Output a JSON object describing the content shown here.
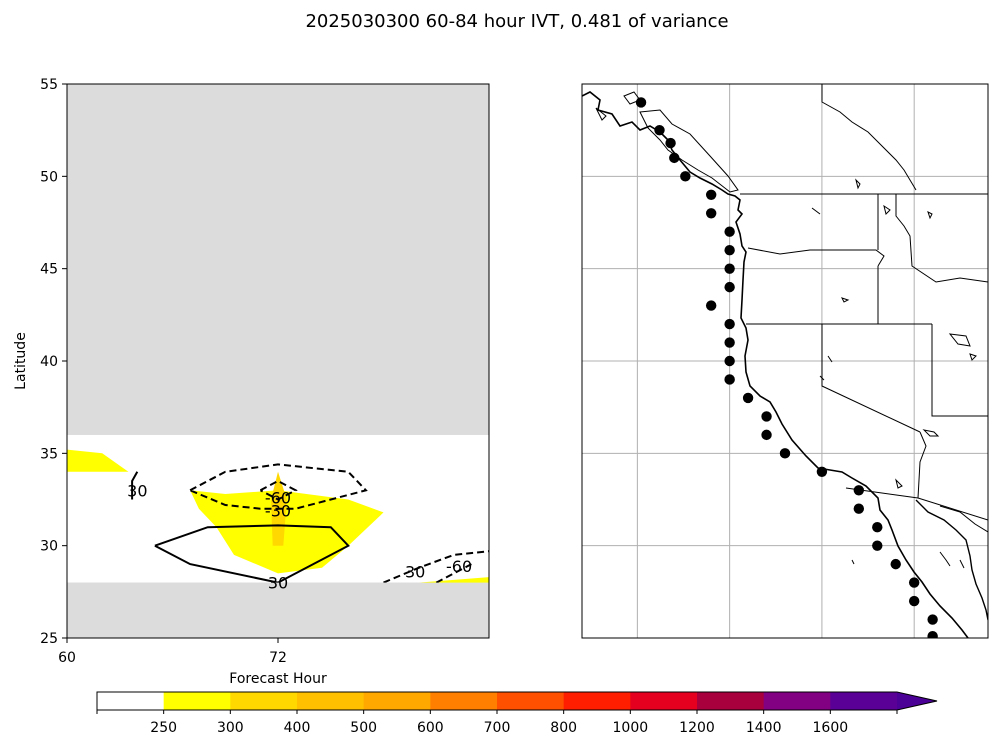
{
  "figure": {
    "title": "2025030300 60-84 hour IVT, 0.481 of variance"
  },
  "chart_data": [
    {
      "type": "heatmap",
      "panel": "left",
      "xlabel": "Forecast Hour",
      "ylabel": "Latitude",
      "xlim": [
        60,
        84
      ],
      "ylim": [
        25,
        55
      ],
      "x_ticks": [
        60,
        72
      ],
      "y_ticks": [
        25,
        30,
        35,
        40,
        45,
        50,
        55
      ],
      "masked_fill_color": "#dcdcdc",
      "valid_latitude_range": [
        28,
        36
      ],
      "filled_regions": [
        {
          "level": "250-300",
          "color": "#ffff00",
          "polygon": [
            [
              60,
              35.2
            ],
            [
              62,
              35
            ],
            [
              63.5,
              34
            ],
            [
              60,
              34
            ]
          ]
        },
        {
          "level": "250-300",
          "color": "#ffff00",
          "polygon": [
            [
              67,
              33
            ],
            [
              69,
              32.8
            ],
            [
              72,
              33
            ],
            [
              76,
              32.5
            ],
            [
              78,
              31.8
            ],
            [
              76,
              30
            ],
            [
              74.5,
              28.8
            ],
            [
              72,
              28.5
            ],
            [
              69.5,
              29.5
            ],
            [
              68.5,
              31
            ],
            [
              67.5,
              32
            ]
          ]
        },
        {
          "level": "250-300",
          "color": "#ffff00",
          "polygon": [
            [
              80,
              28
            ],
            [
              84,
              28.3
            ],
            [
              84,
              27.6
            ]
          ]
        },
        {
          "level": "300-400",
          "color": "#ffd800",
          "polygon": [
            [
              71.6,
              32.5
            ],
            [
              72,
              34
            ],
            [
              72.5,
              32.5
            ],
            [
              72.3,
              30
            ],
            [
              71.7,
              30
            ]
          ]
        }
      ],
      "contours": [
        {
          "label": "30",
          "style": "solid",
          "points": [
            [
              64,
              34
            ],
            [
              63.7,
              33.5
            ],
            [
              63.7,
              32.5
            ]
          ]
        },
        {
          "label": "30",
          "style": "solid",
          "points": [
            [
              65,
              30
            ],
            [
              67,
              29
            ],
            [
              72,
              28
            ],
            [
              76,
              30
            ],
            [
              75,
              31
            ],
            [
              72,
              31.1
            ],
            [
              68,
              31
            ],
            [
              65,
              30
            ]
          ]
        },
        {
          "label": "-30",
          "style": "dashed",
          "points": [
            [
              67,
              33
            ],
            [
              69,
              34
            ],
            [
              72,
              34.4
            ],
            [
              76,
              34
            ],
            [
              77,
              33
            ],
            [
              75,
              32.5
            ],
            [
              73,
              32
            ],
            [
              71,
              32
            ],
            [
              69,
              32.2
            ],
            [
              67,
              33
            ]
          ]
        },
        {
          "label": "-60",
          "style": "dashed",
          "points": [
            [
              71,
              33
            ],
            [
              72,
              33.5
            ],
            [
              73,
              33
            ],
            [
              72,
              32.5
            ],
            [
              71,
              33
            ]
          ]
        },
        {
          "label": "30",
          "style": "dashed",
          "points": [
            [
              78,
              28
            ],
            [
              80,
              28.8
            ],
            [
              82,
              29.5
            ],
            [
              84,
              29.7
            ]
          ]
        },
        {
          "label": "-60",
          "style": "dashed",
          "points": [
            [
              81,
              28
            ],
            [
              83,
              29
            ]
          ]
        }
      ],
      "contour_labels": [
        {
          "text": "30",
          "x": 64,
          "y": 33
        },
        {
          "text": "-60",
          "x": 72,
          "y": 32.6
        },
        {
          "text": "-30",
          "x": 72,
          "y": 31.9
        },
        {
          "text": "30",
          "x": 72,
          "y": 28
        },
        {
          "text": "30",
          "x": 79.8,
          "y": 28.6
        },
        {
          "text": "-60",
          "x": 82.3,
          "y": 28.9
        }
      ]
    },
    {
      "type": "scatter",
      "panel": "right",
      "description_of_map": "west coast of North America with state borders",
      "xlim": [
        -130,
        -108
      ],
      "ylim": [
        25,
        55
      ],
      "gridlines_lon": [
        -127,
        -122,
        -117,
        -112
      ],
      "gridlines_lat": [
        30,
        35,
        40,
        45,
        50
      ],
      "points": [
        [
          -126.8,
          54
        ],
        [
          -125.8,
          52.5
        ],
        [
          -125.2,
          51.8
        ],
        [
          -125.0,
          51
        ],
        [
          -124.4,
          50
        ],
        [
          -123.0,
          49
        ],
        [
          -123.0,
          48
        ],
        [
          -122.0,
          47
        ],
        [
          -122.0,
          46
        ],
        [
          -122.0,
          45
        ],
        [
          -122.0,
          44
        ],
        [
          -123.0,
          43
        ],
        [
          -122.0,
          42
        ],
        [
          -122.0,
          41
        ],
        [
          -122.0,
          40
        ],
        [
          -122.0,
          39
        ],
        [
          -121.0,
          38
        ],
        [
          -120.0,
          37
        ],
        [
          -120.0,
          36
        ],
        [
          -119.0,
          35
        ],
        [
          -117.0,
          34
        ],
        [
          -115.0,
          33
        ],
        [
          -115.0,
          32
        ],
        [
          -114.0,
          31
        ],
        [
          -114.0,
          30
        ],
        [
          -113.0,
          29
        ],
        [
          -112.0,
          28
        ],
        [
          -112.0,
          27
        ],
        [
          -111.0,
          26
        ],
        [
          -111.0,
          25.1
        ]
      ]
    },
    {
      "type": "colorbar",
      "boundaries": [
        0,
        250,
        300,
        400,
        500,
        600,
        700,
        800,
        1000,
        1200,
        1400,
        1600
      ],
      "tick_labels": [
        "250",
        "300",
        "400",
        "500",
        "600",
        "700",
        "800",
        "1000",
        "1200",
        "1400",
        "1600"
      ],
      "colors": [
        "#ffffff",
        "#ffff00",
        "#ffd800",
        "#ffc000",
        "#ffa800",
        "#ff8000",
        "#ff5000",
        "#ff1e00",
        "#e50020",
        "#a8003c",
        "#820082",
        "#5a0096",
        "#4b0096"
      ],
      "extend": "max"
    }
  ]
}
